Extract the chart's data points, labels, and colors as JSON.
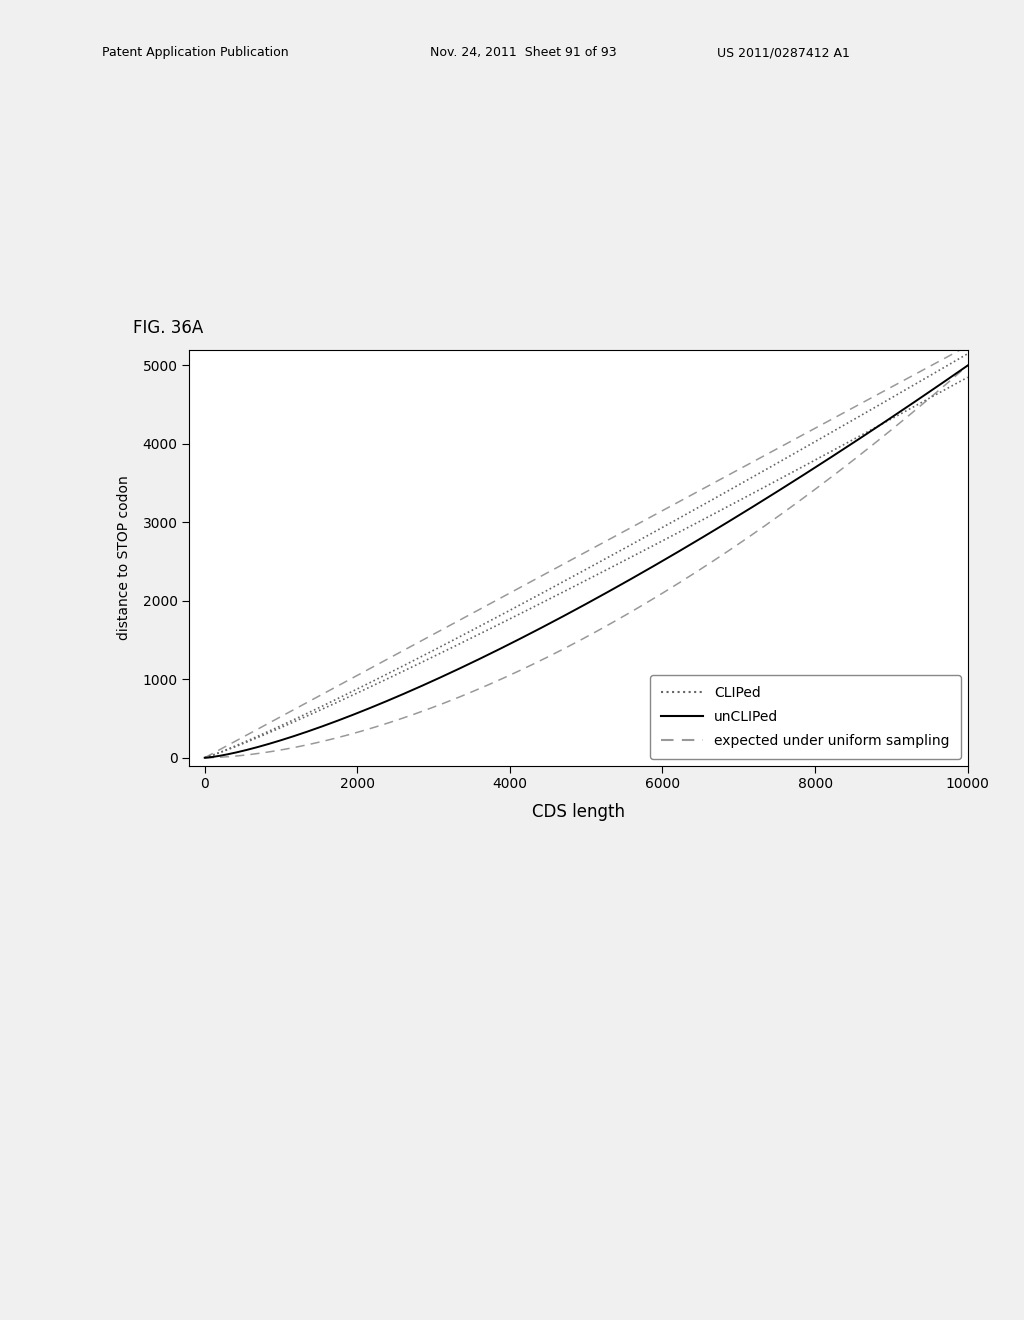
{
  "fig_label": "FIG. 36A",
  "xlabel": "CDS length",
  "ylabel": "distance to STOP codon",
  "xlim": [
    -200,
    10000
  ],
  "ylim": [
    -100,
    5200
  ],
  "xticks": [
    0,
    2000,
    4000,
    6000,
    8000,
    10000
  ],
  "yticks": [
    0,
    1000,
    2000,
    3000,
    4000,
    5000
  ],
  "background_color": "#f0f0f0",
  "plot_bg_color": "#ffffff",
  "header_left": "Patent Application Publication",
  "header_mid": "Nov. 24, 2011  Sheet 91 of 93",
  "header_right": "US 2011/0287412 A1",
  "legend_entries": [
    "CLIPed",
    "unCLIPed",
    "expected under uniform sampling"
  ],
  "line_color_clipped": "#666666",
  "line_color_unclipped": "#000000",
  "line_color_expected": "#999999"
}
